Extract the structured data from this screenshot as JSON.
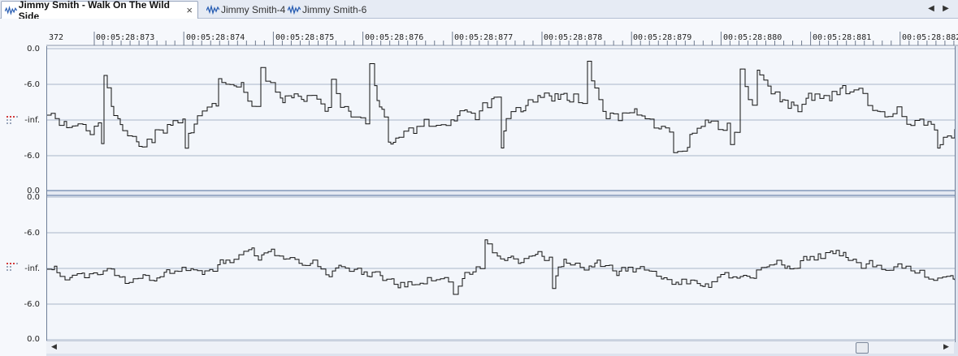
{
  "tabs": [
    {
      "label": "Jimmy Smith - Walk On The Wild Side",
      "active": true,
      "icon": "waveform-icon",
      "closable": true
    },
    {
      "label": "Jimmy Smith-4",
      "active": false,
      "icon": "waveform-icon"
    },
    {
      "label": "Jimmy Smith-6",
      "active": false,
      "icon": "waveform-icon"
    }
  ],
  "tab_nav": {
    "prev": "◀",
    "next": "▶"
  },
  "close_glyph": "×",
  "ruler_ticks": [
    "372",
    "00:05:28:873",
    "00:05:28:874",
    "00:05:28:875",
    "00:05:28:876",
    "00:05:28:877",
    "00:05:28:878",
    "00:05:28:879",
    "00:05:28:880",
    "00:05:28:881",
    "00:05:28:882"
  ],
  "channels": [
    {
      "scale_labels": [
        "0.0",
        "-6.0",
        "-inf.",
        "-6.0",
        "0.0"
      ]
    },
    {
      "scale_labels": [
        "0.0",
        "-6.0",
        "-inf.",
        "-6.0",
        "0.0"
      ]
    }
  ],
  "scroll_arrows": {
    "left": "◀",
    "right": "▶"
  },
  "colors": {
    "waveform": "#111111",
    "grid": "#aab6c8",
    "divider": "#4e6a9a",
    "grip": "#d23a3a"
  }
}
